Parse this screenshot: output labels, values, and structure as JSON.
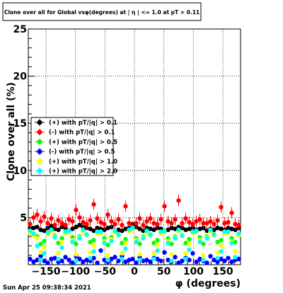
{
  "title": "Clone  over all for Global vsφ(degrees) at | η | <= 1.0 at pT > 0.11",
  "timestamp": "Sun Apr 25 09:38:34 2021",
  "colors": {
    "black": "#000000",
    "red": "#ff0000",
    "green": "#00ff00",
    "blue": "#0000ff",
    "yellow": "#ffff00",
    "cyan": "#00ffff"
  },
  "chart_data": {
    "type": "scatter",
    "title": "Clone  over all for Global vsφ(degrees) at | η | <= 1.0 at pT > 0.11",
    "xlabel": "φ (degrees)",
    "ylabel": "Clone  over all (%)",
    "xlim": [
      -180,
      180
    ],
    "ylim": [
      0,
      25
    ],
    "x_ticks": [
      -150,
      -100,
      -50,
      0,
      50,
      100,
      150
    ],
    "x_tick_labels": [
      "−150",
      "−100",
      "−50",
      "0",
      "50",
      "100",
      "150"
    ],
    "y_ticks": [
      5,
      10,
      15,
      20,
      25
    ],
    "y_tick_labels": [
      "5",
      "10",
      "15",
      "20",
      "25"
    ],
    "grid": true,
    "legend_position": "left-middle",
    "series": [
      {
        "name": "(+) with pT/|q| > 0.1",
        "color": "#000000",
        "x": [
          -177,
          -171,
          -165,
          -159,
          -153,
          -147,
          -141,
          -135,
          -129,
          -123,
          -117,
          -111,
          -105,
          -99,
          -93,
          -87,
          -81,
          -75,
          -69,
          -63,
          -57,
          -51,
          -45,
          -39,
          -33,
          -27,
          -21,
          -15,
          -9,
          -3,
          3,
          9,
          15,
          21,
          27,
          33,
          39,
          45,
          51,
          57,
          63,
          69,
          75,
          81,
          87,
          93,
          99,
          105,
          111,
          117,
          123,
          129,
          135,
          141,
          147,
          153,
          159,
          165,
          171,
          177
        ],
        "values": [
          3.8,
          3.9,
          4.0,
          3.7,
          3.6,
          3.9,
          4.1,
          3.8,
          3.7,
          4.0,
          3.9,
          3.6,
          3.8,
          4.0,
          4.2,
          4.0,
          3.9,
          3.8,
          3.6,
          3.9,
          3.8,
          3.7,
          3.9,
          4.0,
          3.5,
          3.7,
          3.6,
          3.8,
          3.9,
          4.3,
          4.0,
          3.8,
          3.6,
          3.9,
          3.8,
          3.7,
          3.9,
          3.8,
          3.6,
          3.7,
          3.9,
          3.8,
          4.0,
          3.9,
          3.7,
          3.8,
          3.9,
          3.7,
          3.8,
          3.9,
          3.6,
          3.8,
          3.7,
          3.9,
          3.8,
          3.7,
          3.9,
          3.8,
          3.7,
          3.9
        ]
      },
      {
        "name": "(-) with pT/|q| > 0.1",
        "color": "#ff0000",
        "x": [
          -177,
          -171,
          -165,
          -159,
          -153,
          -147,
          -141,
          -135,
          -129,
          -123,
          -117,
          -111,
          -105,
          -99,
          -93,
          -87,
          -81,
          -75,
          -69,
          -63,
          -57,
          -51,
          -45,
          -39,
          -33,
          -27,
          -21,
          -15,
          -9,
          -3,
          3,
          9,
          15,
          21,
          27,
          33,
          39,
          45,
          51,
          57,
          63,
          69,
          75,
          81,
          87,
          93,
          99,
          105,
          111,
          117,
          123,
          129,
          135,
          141,
          147,
          153,
          159,
          165,
          171,
          177
        ],
        "values": [
          4.3,
          5.0,
          5.3,
          4.6,
          5.1,
          4.4,
          4.9,
          4.2,
          4.7,
          4.4,
          4.2,
          4.8,
          4.6,
          5.8,
          5.0,
          4.5,
          4.3,
          4.7,
          6.4,
          4.9,
          4.5,
          4.3,
          5.3,
          4.6,
          4.3,
          4.8,
          4.2,
          6.2,
          4.4,
          4.0,
          4.4,
          4.9,
          4.2,
          4.6,
          4.9,
          4.4,
          4.3,
          4.8,
          6.2,
          4.6,
          4.4,
          4.8,
          6.8,
          4.4,
          4.9,
          4.5,
          4.3,
          4.6,
          4.8,
          4.4,
          4.4,
          4.6,
          4.3,
          4.7,
          6.1,
          4.4,
          4.5,
          5.5,
          4.3,
          4.2
        ]
      },
      {
        "name": "(+) with pT/|q| > 0.5",
        "color": "#00ff00",
        "x": [
          -177,
          -171,
          -165,
          -159,
          -153,
          -147,
          -141,
          -135,
          -129,
          -123,
          -117,
          -111,
          -105,
          -99,
          -93,
          -87,
          -81,
          -75,
          -69,
          -63,
          -57,
          -51,
          -45,
          -39,
          -33,
          -27,
          -21,
          -15,
          -9,
          -3,
          3,
          9,
          15,
          21,
          27,
          33,
          39,
          45,
          51,
          57,
          63,
          69,
          75,
          81,
          87,
          93,
          99,
          105,
          111,
          117,
          123,
          129,
          135,
          141,
          147,
          153,
          159,
          165,
          171,
          177
        ],
        "values": [
          3.4,
          3.2,
          3.0,
          2.2,
          2.5,
          3.3,
          3.6,
          3.1,
          2.3,
          2.8,
          3.4,
          3.5,
          2.9,
          2.2,
          3.0,
          3.6,
          3.2,
          2.4,
          2.6,
          3.4,
          3.4,
          2.8,
          2.1,
          2.9,
          3.5,
          3.2,
          2.3,
          2.7,
          3.6,
          3.8,
          2.8,
          2.2,
          3.0,
          3.5,
          3.2,
          2.3,
          2.6,
          3.4,
          3.5,
          2.8,
          2.2,
          3.0,
          3.6,
          3.1,
          2.3,
          2.7,
          3.4,
          3.5,
          2.9,
          2.2,
          3.0,
          3.6,
          3.2,
          2.4,
          2.6,
          3.4,
          3.4,
          2.8,
          2.4,
          3.2
        ]
      },
      {
        "name": "(-) with pT/|q| > 0.5",
        "color": "#0000ff",
        "x": [
          -177,
          -171,
          -165,
          -159,
          -153,
          -147,
          -141,
          -135,
          -129,
          -123,
          -117,
          -111,
          -105,
          -99,
          -93,
          -87,
          -81,
          -75,
          -69,
          -63,
          -57,
          -51,
          -45,
          -39,
          -33,
          -27,
          -21,
          -15,
          -9,
          -3,
          3,
          9,
          15,
          21,
          27,
          33,
          39,
          45,
          51,
          57,
          63,
          69,
          75,
          81,
          87,
          93,
          99,
          105,
          111,
          117,
          123,
          129,
          135,
          141,
          147,
          153,
          159,
          165,
          171,
          177
        ],
        "values": [
          0.6,
          0.3,
          0.5,
          0.9,
          0.4,
          0.2,
          0.6,
          0.7,
          0.3,
          0.4,
          0.8,
          0.5,
          0.2,
          0.9,
          0.6,
          0.3,
          0.5,
          0.4,
          0.7,
          0.2,
          1.5,
          0.5,
          0.3,
          0.6,
          0.8,
          0.4,
          0.9,
          0.3,
          0.5,
          0.6,
          0.2,
          0.8,
          0.4,
          0.5,
          0.3,
          0.7,
          0.6,
          0.4,
          1.3,
          0.5,
          0.3,
          0.8,
          0.2,
          0.4,
          0.7,
          0.5,
          1.2,
          0.3,
          0.6,
          0.4,
          0.2,
          0.9,
          0.5,
          0.3,
          0.6,
          0.4,
          0.7,
          0.3,
          0.5,
          0.6
        ]
      },
      {
        "name": "(+) with pT/|q| > 1.0",
        "color": "#ffff00",
        "x": [
          -177,
          -171,
          -165,
          -159,
          -153,
          -147,
          -141,
          -135,
          -129,
          -123,
          -117,
          -111,
          -105,
          -99,
          -93,
          -87,
          -81,
          -75,
          -69,
          -63,
          -57,
          -51,
          -45,
          -39,
          -33,
          -27,
          -21,
          -15,
          -9,
          -3,
          3,
          9,
          15,
          21,
          27,
          33,
          39,
          45,
          51,
          57,
          63,
          69,
          75,
          81,
          87,
          93,
          99,
          105,
          111,
          117,
          123,
          129,
          135,
          141,
          147,
          153,
          159,
          165,
          171,
          177
        ],
        "values": [
          3.3,
          3.1,
          2.8,
          1.3,
          1.8,
          3.2,
          3.5,
          3.0,
          1.2,
          2.4,
          3.3,
          3.4,
          2.6,
          1.1,
          2.9,
          3.5,
          3.1,
          1.3,
          2.0,
          3.3,
          3.3,
          2.5,
          1.0,
          2.7,
          3.4,
          3.1,
          1.2,
          2.3,
          3.5,
          3.7,
          2.6,
          1.1,
          2.9,
          3.4,
          3.1,
          1.2,
          2.1,
          3.3,
          3.4,
          2.5,
          1.1,
          2.9,
          3.5,
          3.0,
          1.2,
          2.2,
          3.3,
          3.4,
          2.6,
          1.0,
          2.9,
          3.5,
          3.1,
          1.3,
          2.0,
          3.3,
          3.3,
          2.5,
          1.4,
          3.1
        ]
      },
      {
        "name": "(+) with pT/|q| > 2.0",
        "color": "#00ffff",
        "x": [
          -177,
          -171,
          -165,
          -159,
          -153,
          -147,
          -141,
          -135,
          -129,
          -123,
          -117,
          -111,
          -105,
          -99,
          -93,
          -87,
          -81,
          -75,
          -69,
          -63,
          -57,
          -51,
          -45,
          -39,
          -33,
          -27,
          -21,
          -15,
          -9,
          -3,
          3,
          9,
          15,
          21,
          27,
          33,
          39,
          45,
          51,
          57,
          63,
          69,
          75,
          81,
          87,
          93,
          99,
          105,
          111,
          117,
          123,
          129,
          135,
          141,
          147,
          153,
          159,
          165,
          171,
          177
        ],
        "values": [
          3.6,
          3.3,
          2.0,
          0.5,
          1.2,
          3.4,
          3.7,
          2.9,
          0.6,
          1.8,
          3.5,
          3.6,
          2.4,
          0.4,
          2.8,
          3.7,
          3.2,
          0.7,
          1.4,
          3.5,
          3.5,
          2.3,
          0.5,
          2.5,
          3.6,
          3.2,
          0.6,
          1.7,
          3.7,
          3.9,
          2.4,
          0.5,
          2.8,
          3.6,
          3.2,
          0.6,
          1.5,
          3.5,
          3.6,
          2.3,
          0.4,
          2.8,
          3.7,
          3.1,
          0.6,
          1.6,
          3.5,
          3.6,
          2.4,
          0.5,
          2.8,
          3.7,
          3.2,
          0.7,
          1.4,
          3.5,
          3.5,
          2.3,
          0.8,
          3.3
        ]
      }
    ]
  }
}
